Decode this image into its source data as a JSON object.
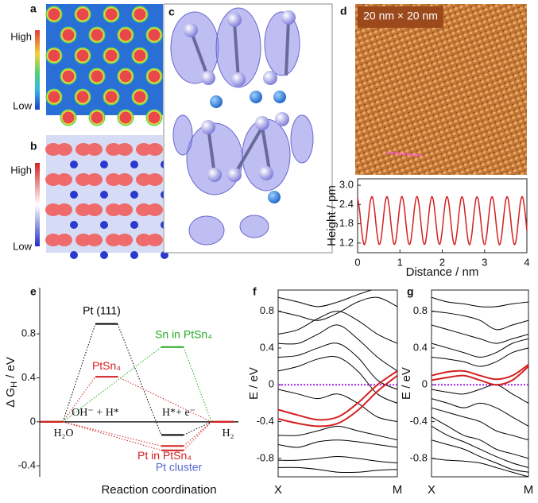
{
  "panels": {
    "a": {
      "label": "a",
      "high": "High",
      "low": "Low"
    },
    "b": {
      "label": "b",
      "high": "High",
      "low": "Low"
    },
    "c": {
      "label": "c"
    },
    "d": {
      "label": "d",
      "scale_text": "20 nm × 20 nm"
    }
  },
  "chart_data": [
    {
      "label": "d",
      "type": "line",
      "xlabel": "Distance / nm",
      "ylabel": "Height / pm",
      "x": [
        0,
        0.05,
        0.1,
        0.15,
        0.2,
        0.25,
        0.3,
        0.35,
        0.4,
        0.45,
        0.5,
        0.55,
        0.6,
        0.65,
        0.7,
        0.75,
        0.8,
        0.85,
        0.9,
        0.95,
        1,
        1.05,
        1.1,
        1.15,
        1.2,
        1.25,
        1.3,
        1.35,
        1.4,
        1.45,
        1.5,
        1.55,
        1.6,
        1.65,
        1.7,
        1.75,
        1.8,
        1.85,
        1.9,
        1.95,
        2,
        2.05,
        2.1,
        2.15,
        2.2,
        2.25,
        2.3,
        2.35,
        2.4,
        2.45,
        2.5,
        2.55,
        2.6,
        2.65,
        2.7,
        2.75,
        2.8,
        2.85,
        2.9,
        2.95,
        3,
        3.05,
        3.1,
        3.15,
        3.2,
        3.25,
        3.3,
        3.35,
        3.4,
        3.45,
        3.5,
        3.55,
        3.6,
        3.65,
        3.7,
        3.75,
        3.8,
        3.85,
        3.9,
        3.95,
        4
      ],
      "series": [
        {
          "color": "#d42020",
          "values": [
            2.61,
            2.18,
            1.53,
            1.16,
            1.33,
            1.92,
            2.49,
            2.63,
            2.23,
            1.59,
            1.18,
            1.29,
            1.85,
            2.45,
            2.64,
            2.29,
            1.66,
            1.2,
            1.25,
            1.79,
            2.4,
            2.65,
            2.35,
            1.72,
            1.22,
            1.22,
            1.72,
            2.35,
            2.65,
            2.4,
            1.78,
            1.25,
            1.2,
            1.66,
            2.3,
            2.64,
            2.45,
            1.85,
            1.29,
            1.18,
            1.6,
            2.24,
            2.63,
            2.49,
            1.91,
            1.33,
            1.16,
            1.54,
            2.18,
            2.61,
            2.53,
            1.98,
            1.37,
            1.15,
            1.48,
            2.12,
            2.59,
            2.56,
            2.04,
            1.42,
            1.15,
            1.43,
            2.05,
            2.56,
            2.59,
            2.11,
            1.48,
            1.15,
            1.38,
            1.99,
            2.53,
            2.61,
            2.17,
            1.53,
            1.16,
            1.33,
            1.92,
            2.49,
            2.63,
            2.23,
            1.59
          ]
        }
      ],
      "xlim": [
        0,
        4
      ],
      "ylim": [
        0.9,
        3.2
      ],
      "xticks": [
        0,
        1,
        2,
        3,
        4
      ],
      "yticks": [
        1.2,
        1.8,
        2.4,
        {
          "value": 3.0,
          "label": "3.0"
        }
      ]
    },
    {
      "label": "e",
      "type": "level",
      "xlabel": "Reaction coordination",
      "ylabel": "Δ G",
      "ylabel_sub": "H",
      "ylabel_unit": " / eV",
      "categories": [
        "H₂O",
        "OH⁻ + H*",
        "H*+ e⁻",
        "H₂"
      ],
      "series": [
        {
          "name": "Pt (111)",
          "color": "#000000",
          "values": [
            0,
            0.89,
            -0.12,
            0
          ]
        },
        {
          "name": "PtSn₄",
          "color": "#d42020",
          "values": [
            0,
            0.41,
            null,
            0
          ]
        },
        {
          "name": "Sn in PtSn₄",
          "color": "#22aa22",
          "values": [
            0,
            null,
            0.68,
            0
          ]
        },
        {
          "name": "Pt in PtSn₄",
          "color": "#d42020",
          "values": [
            0,
            null,
            -0.22,
            0
          ]
        },
        {
          "name": "Pt cluster",
          "color": "#d42020",
          "label_color": "#5566cc",
          "values": [
            0,
            null,
            -0.26,
            0
          ]
        }
      ],
      "ylim": [
        -0.5,
        1.22
      ],
      "yticks": [
        -0.4,
        0,
        0.4,
        0.8
      ]
    },
    {
      "label": "f",
      "type": "band",
      "ylabel": "E / eV",
      "fermi_line": true,
      "fermi_color": "#a020f0",
      "categories": [
        "X",
        null,
        null,
        null,
        null,
        null,
        "M"
      ],
      "series": [
        {
          "color": "#000000",
          "values": [
            0.95,
            0.9,
            0.85,
            0.9,
            0.98,
            1.05,
            1.1
          ]
        },
        {
          "color": "#000000",
          "values": [
            0.8,
            0.75,
            0.7,
            0.78,
            0.9,
            0.95,
            0.85
          ]
        },
        {
          "color": "#000000",
          "values": [
            0.55,
            0.6,
            0.72,
            0.8,
            0.7,
            0.55,
            0.45
          ]
        },
        {
          "color": "#000000",
          "values": [
            0.45,
            0.45,
            0.55,
            0.65,
            0.5,
            0.3,
            0.15
          ]
        },
        {
          "color": "#000000",
          "values": [
            0.3,
            0.32,
            0.4,
            0.45,
            0.3,
            0.05,
            -0.05
          ]
        },
        {
          "color": "#000000",
          "values": [
            0.15,
            0.2,
            0.28,
            0.3,
            0.15,
            -0.1,
            -0.2
          ]
        },
        {
          "color": "#000000",
          "values": [
            -0.05,
            -0.1,
            -0.15,
            -0.1,
            -0.2,
            -0.35,
            -0.4
          ]
        },
        {
          "color": "#000000",
          "values": [
            -0.55,
            -0.55,
            -0.5,
            -0.45,
            -0.5,
            -0.55,
            -0.6
          ]
        },
        {
          "color": "#000000",
          "values": [
            -0.65,
            -0.68,
            -0.62,
            -0.6,
            -0.62,
            -0.65,
            -0.68
          ]
        },
        {
          "color": "#000000",
          "values": [
            -0.82,
            -0.82,
            -0.8,
            -0.78,
            -0.8,
            -0.83,
            -0.85
          ]
        },
        {
          "color": "#000000",
          "values": [
            -0.9,
            -0.9,
            -0.92,
            -0.95,
            -0.95,
            -0.93,
            -0.92
          ]
        },
        {
          "color": "#d42020",
          "values": [
            -0.27,
            -0.33,
            -0.38,
            -0.35,
            -0.2,
            0.0,
            0.15
          ]
        },
        {
          "color": "#d42020",
          "values": [
            -0.37,
            -0.42,
            -0.45,
            -0.42,
            -0.28,
            -0.07,
            0.1
          ]
        }
      ],
      "ylim": [
        -1.0,
        1.03
      ],
      "yticks": [
        -0.8,
        -0.4,
        0,
        0.4,
        0.8
      ]
    },
    {
      "label": "g",
      "type": "band",
      "ylabel": "E / eV",
      "fermi_line": true,
      "fermi_color": "#a020f0",
      "categories": [
        "X",
        null,
        null,
        null,
        null,
        null,
        "M"
      ],
      "series": [
        {
          "color": "#000000",
          "values": [
            0.95,
            0.9,
            0.88,
            0.85,
            0.85,
            0.88,
            0.9
          ]
        },
        {
          "color": "#000000",
          "values": [
            0.8,
            0.78,
            0.75,
            0.7,
            0.6,
            0.65,
            0.7
          ]
        },
        {
          "color": "#000000",
          "values": [
            0.65,
            0.6,
            0.55,
            0.5,
            0.45,
            0.5,
            0.55
          ]
        },
        {
          "color": "#000000",
          "values": [
            0.45,
            0.4,
            0.35,
            0.3,
            0.35,
            0.45,
            0.5
          ]
        },
        {
          "color": "#000000",
          "values": [
            0.3,
            0.28,
            0.25,
            0.2,
            0.25,
            0.35,
            0.4
          ]
        },
        {
          "color": "#000000",
          "values": [
            -0.05,
            -0.08,
            -0.1,
            -0.05,
            0.0,
            -0.1,
            -0.2
          ]
        },
        {
          "color": "#000000",
          "values": [
            -0.15,
            -0.2,
            -0.25,
            -0.2,
            -0.25,
            -0.35,
            -0.45
          ]
        },
        {
          "color": "#000000",
          "values": [
            -0.25,
            -0.3,
            -0.35,
            -0.4,
            -0.5,
            -0.55,
            -0.6
          ]
        },
        {
          "color": "#000000",
          "values": [
            -0.35,
            -0.45,
            -0.55,
            -0.6,
            -0.7,
            -0.75,
            -0.8
          ]
        },
        {
          "color": "#000000",
          "values": [
            -0.45,
            -0.55,
            -0.62,
            -0.7,
            -0.78,
            -0.85,
            -0.9
          ]
        },
        {
          "color": "#000000",
          "values": [
            -0.6,
            -0.65,
            -0.7,
            -0.78,
            -0.85,
            -0.92,
            -0.95
          ]
        },
        {
          "color": "#000000",
          "values": [
            -0.8,
            -0.82,
            -0.83,
            -0.85,
            -0.9,
            -0.95,
            -1.0
          ]
        },
        {
          "color": "#d42020",
          "values": [
            0.05,
            0.08,
            0.1,
            0.05,
            0.0,
            0.05,
            0.2
          ]
        },
        {
          "color": "#d42020",
          "values": [
            0.1,
            0.14,
            0.15,
            0.1,
            0.06,
            0.1,
            0.22
          ]
        }
      ],
      "ylim": [
        -1.0,
        1.03
      ],
      "yticks": [
        -0.8,
        -0.4,
        0,
        0.4,
        0.8
      ]
    }
  ]
}
